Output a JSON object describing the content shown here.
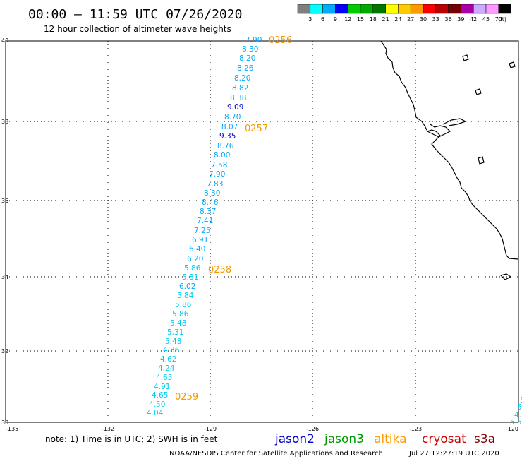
{
  "title": "00:00 – 11:59 UTC 07/26/2020",
  "subtitle": "12 hour collection of altimeter wave heights",
  "legend": {
    "unit": "(ft)",
    "colors": [
      "#7f7f7f",
      "#00ffff",
      "#00aaff",
      "#0000ff",
      "#00cc00",
      "#00aa00",
      "#007700",
      "#ffff00",
      "#ffcc00",
      "#ff9900",
      "#ff0000",
      "#bb0000",
      "#770000",
      "#aa00aa",
      "#ccaaff",
      "#ff99ff",
      "#000000"
    ],
    "labels": [
      "3",
      "6",
      "9",
      "12",
      "15",
      "18",
      "21",
      "24",
      "27",
      "30",
      "33",
      "36",
      "39",
      "42",
      "45",
      "70"
    ]
  },
  "axes": {
    "lon_labels": [
      "-135",
      "-132",
      "-129",
      "-126",
      "-123",
      "-120"
    ],
    "lat_labels": [
      "40",
      "38",
      "36",
      "34",
      "32",
      "30"
    ]
  },
  "track": {
    "heights": [
      "7.90",
      "8.30",
      "8.20",
      "8.26",
      "8.20",
      "8.82",
      "8.38",
      "9.09",
      "8.70",
      "8.07",
      "9.35",
      "8.76",
      "8.00",
      "7.58",
      "7.90",
      "7.83",
      "8.30",
      "8.46",
      "8.37",
      "7.41",
      "7.25",
      "6.91",
      "6.40",
      "6.20",
      "5.86",
      "5.81",
      "6.02",
      "5.84",
      "5.86",
      "5.86",
      "5.48",
      "5.31",
      "5.48",
      "4.86",
      "4.62",
      "4.24",
      "4.65",
      "4.91",
      "4.65",
      "4.50",
      "4.04"
    ],
    "time_labels": [
      "0256",
      "0257",
      "0258",
      "0259"
    ],
    "edge_fragments": [
      "5",
      "5.",
      "4.",
      "5.5"
    ]
  },
  "note": "note: 1) Time is in UTC; 2) SWH is in feet",
  "satellites": [
    {
      "name": "jason2",
      "color": "#0000cc"
    },
    {
      "name": "jason3",
      "color": "#009900"
    },
    {
      "name": "altika",
      "color": "#ff9900"
    },
    {
      "name": "cryosat",
      "color": "#cc0000"
    },
    {
      "name": "s3a",
      "color": "#880000"
    }
  ],
  "credit": "NOAA/NESDIS Center for Satellite Applications and Research",
  "timestamp": "Jul 27 12:27:19 UTC 2020"
}
